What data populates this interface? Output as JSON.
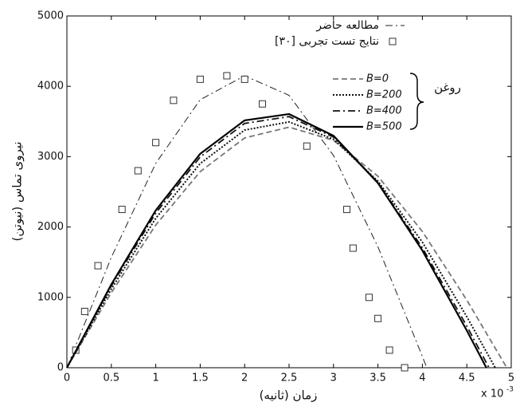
{
  "chart_data": {
    "type": "line",
    "xlabel": "زمان (ثانیه)",
    "ylabel": "نیروی تماس (نیوتن)",
    "x_multiplier": {
      "base": "x 10",
      "exponent": "-3"
    },
    "xlim": [
      0,
      5
    ],
    "ylim": [
      0,
      5000
    ],
    "xticks": [
      0,
      0.5,
      1,
      1.5,
      2,
      2.5,
      3,
      3.5,
      4,
      4.5,
      5
    ],
    "yticks": [
      0,
      1000,
      2000,
      3000,
      4000,
      5000
    ],
    "legend_position": "upper right",
    "legend_group_label": "روغن",
    "series": [
      {
        "name": "مطالعه حاضر",
        "type": "line",
        "style": "dashdot",
        "color": "#222",
        "width": 1,
        "x": [
          0,
          0.5,
          1,
          1.5,
          2,
          2.5,
          3,
          3.5,
          4,
          4.05
        ],
        "values": [
          0,
          1569,
          2905,
          3810,
          4149,
          3872,
          3017,
          1718,
          161,
          0
        ]
      },
      {
        "name": "[۳۰] نتایج تست تجربی",
        "type": "scatter",
        "marker": "square",
        "color": "#333",
        "x": [
          0.1,
          0.2,
          0.35,
          0.62,
          0.8,
          1.0,
          1.2,
          1.5,
          1.8,
          2.0,
          2.2,
          2.7,
          3.15,
          3.22,
          3.4,
          3.5,
          3.63,
          3.8
        ],
        "values": [
          250,
          800,
          1450,
          2250,
          2800,
          3200,
          3800,
          4100,
          4150,
          4100,
          3750,
          3150,
          2250,
          1700,
          1000,
          700,
          250,
          0
        ]
      },
      {
        "name": "B=0",
        "type": "line",
        "style": "dashed",
        "color": "#777",
        "width": 1.8,
        "group": true,
        "x": [
          0,
          0.5,
          1,
          1.5,
          2,
          2.5,
          3,
          3.5,
          4,
          4.5,
          4.95
        ],
        "values": [
          0,
          1067,
          2028,
          2787,
          3266,
          3420,
          3232,
          2722,
          1936,
          961,
          0
        ]
      },
      {
        "name": "B=200",
        "type": "line",
        "style": "dotted",
        "color": "#111",
        "width": 2,
        "group": true,
        "x": [
          0,
          0.5,
          1,
          1.5,
          2,
          2.5,
          3,
          3.5,
          4,
          4.5,
          4.82
        ],
        "values": [
          0,
          1120,
          2124,
          2902,
          3378,
          3494,
          3248,
          2653,
          1785,
          725,
          0
        ]
      },
      {
        "name": "B=400",
        "type": "line",
        "style": "dashdot",
        "color": "#111",
        "width": 1.8,
        "group": true,
        "x": [
          0,
          0.5,
          1,
          1.5,
          2,
          2.5,
          3,
          3.5,
          4,
          4.5,
          4.75
        ],
        "values": [
          0,
          1163,
          2198,
          2996,
          3473,
          3569,
          3279,
          2631,
          1704,
          591,
          0
        ]
      },
      {
        "name": "B=500",
        "type": "line",
        "style": "solid",
        "color": "#000",
        "width": 2.2,
        "group": true,
        "x": [
          0,
          0.5,
          1,
          1.5,
          2,
          2.5,
          3,
          3.5,
          4,
          4.5,
          4.72
        ],
        "values": [
          0,
          1184,
          2237,
          3041,
          3516,
          3606,
          3297,
          2625,
          1666,
          529,
          0
        ]
      }
    ]
  }
}
